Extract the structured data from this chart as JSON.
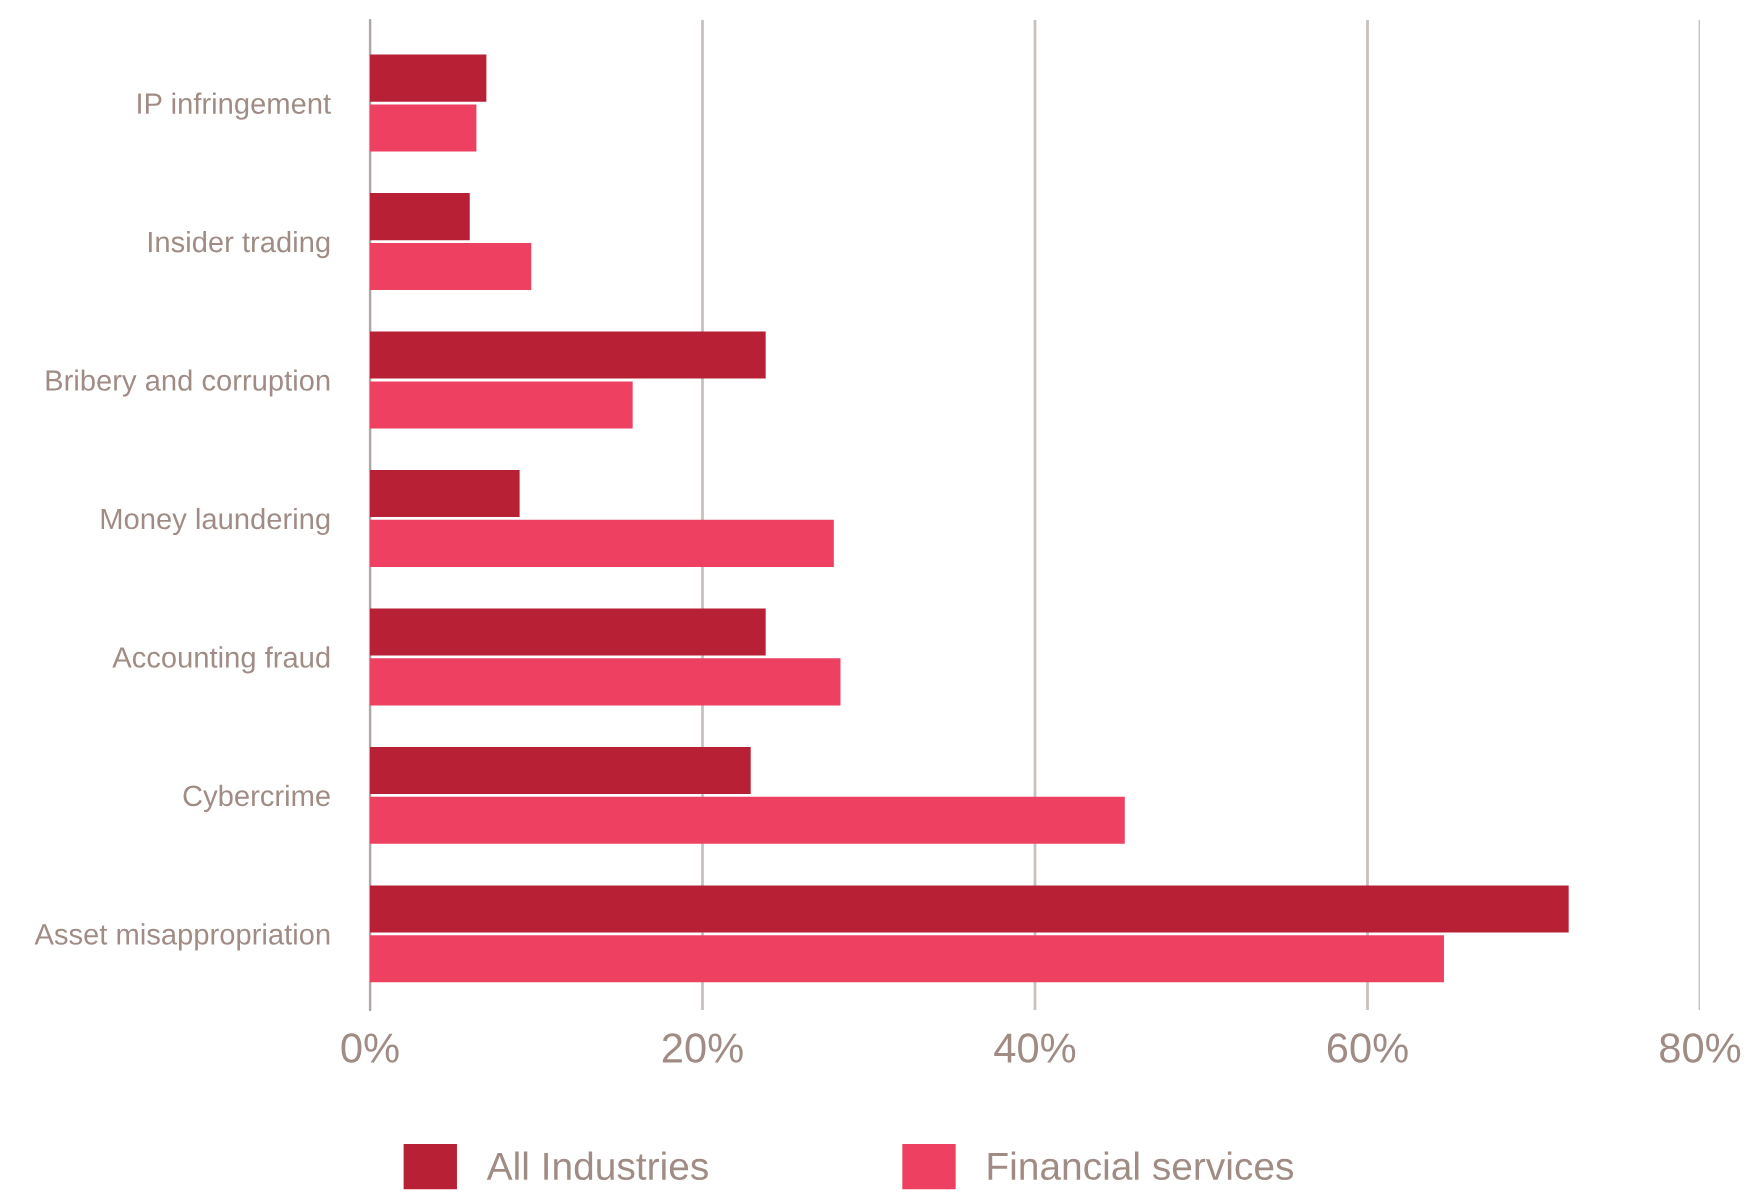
{
  "chart_data": {
    "type": "bar",
    "orientation": "horizontal",
    "categories": [
      "IP infringement",
      "Insider trading",
      "Bribery and corruption",
      "Money laundering",
      "Accounting fraud",
      "Cybercrime",
      "Asset misappropriation"
    ],
    "series": [
      {
        "name": "All Industries",
        "color": "#b82035",
        "values": [
          7.0,
          6.0,
          23.8,
          9.0,
          23.8,
          22.9,
          72.1
        ]
      },
      {
        "name": "Financial services",
        "color": "#ee4060",
        "values": [
          6.4,
          9.7,
          15.8,
          27.9,
          28.3,
          45.4,
          64.6
        ]
      }
    ],
    "xlim": [
      0,
      80
    ],
    "xticks": [
      {
        "value": 0,
        "label": "0%"
      },
      {
        "value": 20,
        "label": "20%"
      },
      {
        "value": 40,
        "label": "40%"
      },
      {
        "value": 60,
        "label": "60%"
      },
      {
        "value": 80,
        "label": "80%"
      }
    ],
    "grid": "x",
    "legend": "bottom"
  }
}
